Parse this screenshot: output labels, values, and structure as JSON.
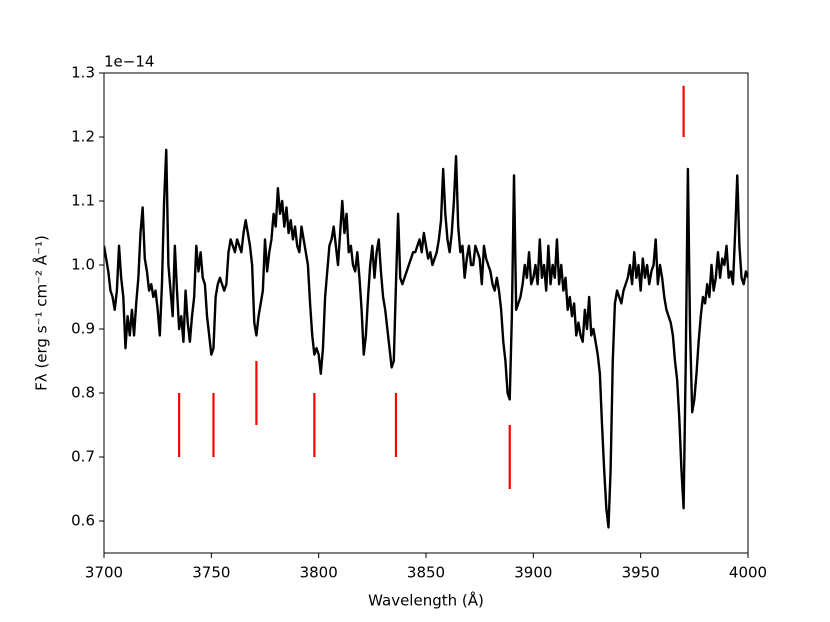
{
  "chart_data": {
    "type": "line",
    "xlabel": "Wavelength (Å)",
    "ylabel": "Fλ (erg s⁻¹ cm⁻² Å⁻¹)",
    "y_offset_label": "1e−14",
    "xlim": [
      3700,
      4000
    ],
    "ylim": [
      0.55,
      1.3
    ],
    "xticks": [
      3700,
      3750,
      3800,
      3850,
      3900,
      3950,
      4000
    ],
    "yticks": [
      0.6,
      0.7,
      0.8,
      0.9,
      {
        "value": 1,
        "label": "1.0"
      },
      1.1,
      1.2,
      1.3
    ],
    "x": [
      3700,
      3701,
      3702,
      3703,
      3704,
      3705,
      3706,
      3707,
      3708,
      3709,
      3710,
      3711,
      3712,
      3713,
      3714,
      3715,
      3716,
      3717,
      3718,
      3719,
      3720,
      3721,
      3722,
      3723,
      3724,
      3725,
      3726,
      3727,
      3728,
      3729,
      3730,
      3731,
      3732,
      3733,
      3734,
      3735,
      3736,
      3737,
      3738,
      3739,
      3740,
      3741,
      3742,
      3743,
      3744,
      3745,
      3746,
      3747,
      3748,
      3749,
      3750,
      3751,
      3752,
      3753,
      3754,
      3755,
      3756,
      3757,
      3758,
      3759,
      3760,
      3761,
      3762,
      3763,
      3764,
      3765,
      3766,
      3767,
      3768,
      3769,
      3770,
      3771,
      3772,
      3773,
      3774,
      3775,
      3776,
      3777,
      3778,
      3779,
      3780,
      3781,
      3782,
      3783,
      3784,
      3785,
      3786,
      3787,
      3788,
      3789,
      3790,
      3791,
      3792,
      3793,
      3794,
      3795,
      3796,
      3797,
      3798,
      3799,
      3800,
      3801,
      3802,
      3803,
      3804,
      3805,
      3806,
      3807,
      3808,
      3809,
      3810,
      3811,
      3812,
      3813,
      3814,
      3815,
      3816,
      3817,
      3818,
      3819,
      3820,
      3821,
      3822,
      3823,
      3824,
      3825,
      3826,
      3827,
      3828,
      3829,
      3830,
      3831,
      3832,
      3833,
      3834,
      3835,
      3836,
      3837,
      3838,
      3839,
      3840,
      3841,
      3842,
      3843,
      3844,
      3845,
      3846,
      3847,
      3848,
      3849,
      3850,
      3851,
      3852,
      3853,
      3854,
      3855,
      3856,
      3857,
      3858,
      3859,
      3860,
      3861,
      3862,
      3863,
      3864,
      3865,
      3866,
      3867,
      3868,
      3869,
      3870,
      3871,
      3872,
      3873,
      3874,
      3875,
      3876,
      3877,
      3878,
      3879,
      3880,
      3881,
      3882,
      3883,
      3884,
      3885,
      3886,
      3887,
      3888,
      3889,
      3890,
      3891,
      3892,
      3893,
      3894,
      3895,
      3896,
      3897,
      3898,
      3899,
      3900,
      3901,
      3902,
      3903,
      3904,
      3905,
      3906,
      3907,
      3908,
      3909,
      3910,
      3911,
      3912,
      3913,
      3914,
      3915,
      3916,
      3917,
      3918,
      3919,
      3920,
      3921,
      3922,
      3923,
      3924,
      3925,
      3926,
      3927,
      3928,
      3929,
      3930,
      3931,
      3932,
      3933,
      3934,
      3935,
      3936,
      3937,
      3938,
      3939,
      3940,
      3941,
      3942,
      3943,
      3944,
      3945,
      3946,
      3947,
      3948,
      3949,
      3950,
      3951,
      3952,
      3953,
      3954,
      3955,
      3956,
      3957,
      3958,
      3959,
      3960,
      3961,
      3962,
      3963,
      3964,
      3965,
      3966,
      3967,
      3968,
      3969,
      3970,
      3971,
      3972,
      3973,
      3974,
      3975,
      3976,
      3977,
      3978,
      3979,
      3980,
      3981,
      3982,
      3983,
      3984,
      3985,
      3986,
      3987,
      3988,
      3989,
      3990,
      3991,
      3992,
      3993,
      3994,
      3995,
      3996,
      3997,
      3998,
      3999,
      4000
    ],
    "series": [
      {
        "color": "#000000",
        "values": [
          1.03,
          1.01,
          0.99,
          0.96,
          0.95,
          0.93,
          0.96,
          1.03,
          0.98,
          0.95,
          0.87,
          0.92,
          0.89,
          0.93,
          0.89,
          0.94,
          0.98,
          1.05,
          1.09,
          1.01,
          0.99,
          0.96,
          0.97,
          0.95,
          0.96,
          0.93,
          0.89,
          0.97,
          1.1,
          1.18,
          1.0,
          0.96,
          0.92,
          1.03,
          0.96,
          0.9,
          0.92,
          0.88,
          0.96,
          0.91,
          0.88,
          0.92,
          0.95,
          1.03,
          0.99,
          1.02,
          0.98,
          0.97,
          0.92,
          0.89,
          0.86,
          0.87,
          0.95,
          0.97,
          0.98,
          0.97,
          0.96,
          0.97,
          1.02,
          1.04,
          1.03,
          1.02,
          1.04,
          1.03,
          1.02,
          1.05,
          1.07,
          1.05,
          1.03,
          1.0,
          0.91,
          0.89,
          0.92,
          0.94,
          0.96,
          1.04,
          0.99,
          1.02,
          1.04,
          1.08,
          1.06,
          1.12,
          1.08,
          1.1,
          1.06,
          1.09,
          1.05,
          1.07,
          1.04,
          1.06,
          1.03,
          1.02,
          1.06,
          1.04,
          1.02,
          1.0,
          0.94,
          0.89,
          0.86,
          0.87,
          0.86,
          0.83,
          0.87,
          0.95,
          0.99,
          1.03,
          1.04,
          1.06,
          1.03,
          1.0,
          1.05,
          1.1,
          1.05,
          1.08,
          1.02,
          1.03,
          1.0,
          0.99,
          1.02,
          0.98,
          0.93,
          0.86,
          0.89,
          0.95,
          1.0,
          1.03,
          0.98,
          1.02,
          1.04,
          0.99,
          0.95,
          0.93,
          0.9,
          0.87,
          0.84,
          0.85,
          0.97,
          1.08,
          0.98,
          0.97,
          0.98,
          0.99,
          1.0,
          1.01,
          1.02,
          1.02,
          1.03,
          1.04,
          1.02,
          1.05,
          1.03,
          1.01,
          1.02,
          1.0,
          1.01,
          1.02,
          1.04,
          1.07,
          1.15,
          1.08,
          1.04,
          1.02,
          1.05,
          1.1,
          1.17,
          1.06,
          1.02,
          1.03,
          0.98,
          1.01,
          1.03,
          1.0,
          1.0,
          1.03,
          1.02,
          1.01,
          0.97,
          1.03,
          1.01,
          1.0,
          0.99,
          0.97,
          0.96,
          0.98,
          0.96,
          0.93,
          0.88,
          0.85,
          0.8,
          0.79,
          0.92,
          1.14,
          0.93,
          0.94,
          0.95,
          0.97,
          1.0,
          0.98,
          1.02,
          0.97,
          0.98,
          1.0,
          0.97,
          1.04,
          0.98,
          1.0,
          0.96,
          1.03,
          0.97,
          1.0,
          0.98,
          1.04,
          0.97,
          1.0,
          0.96,
          0.98,
          0.93,
          0.95,
          0.92,
          0.94,
          0.89,
          0.91,
          0.89,
          0.88,
          0.93,
          0.9,
          0.95,
          0.89,
          0.9,
          0.88,
          0.86,
          0.83,
          0.75,
          0.68,
          0.62,
          0.59,
          0.68,
          0.85,
          0.94,
          0.96,
          0.95,
          0.94,
          0.96,
          0.97,
          0.98,
          1.0,
          0.97,
          1.02,
          0.98,
          1.0,
          0.96,
          1.01,
          0.98,
          1.0,
          0.97,
          0.99,
          1.0,
          1.04,
          0.97,
          1.0,
          0.98,
          0.95,
          0.93,
          0.92,
          0.91,
          0.89,
          0.85,
          0.82,
          0.76,
          0.68,
          0.62,
          0.85,
          1.15,
          0.9,
          0.77,
          0.79,
          0.83,
          0.88,
          0.92,
          0.95,
          0.94,
          0.97,
          0.95,
          1.0,
          0.96,
          0.98,
          1.02,
          0.98,
          1.01,
          1.0,
          1.03,
          0.98,
          0.99,
          0.97,
          1.05,
          1.14,
          1.03,
          0.98,
          0.97,
          0.99,
          0.98
        ]
      }
    ],
    "markers": {
      "color": "#ff0000",
      "x": [
        3735,
        3751,
        3771,
        3798,
        3836,
        3889,
        3970
      ],
      "ymin": [
        0.7,
        0.7,
        0.75,
        0.7,
        0.7,
        0.65,
        1.2
      ],
      "ymax": [
        0.8,
        0.8,
        0.85,
        0.8,
        0.8,
        0.75,
        1.28
      ]
    }
  }
}
